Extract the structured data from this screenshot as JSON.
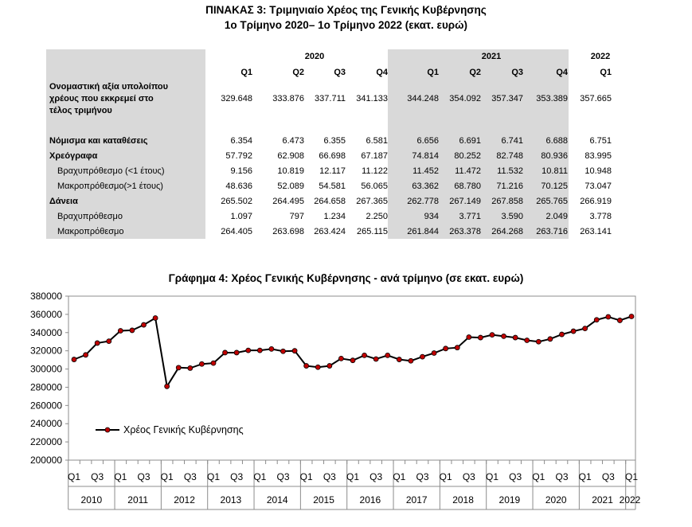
{
  "table": {
    "title": "ΠΙΝΑΚΑΣ 3: Τριμηνιαίο Χρέος της Γενικής Κυβέρνησης",
    "subtitle": "1ο Τρίμηνο 2020– 1ο Τρίμηνο 2022 (εκατ. ευρώ)",
    "years": [
      "2020",
      "2021",
      "2022"
    ],
    "quarters": [
      "Q1",
      "Q2",
      "Q3",
      "Q4",
      "Q1",
      "Q2",
      "Q3",
      "Q4",
      "Q1"
    ],
    "rows": [
      {
        "label_lines": [
          "Ονομαστική αξία υπολοίπου",
          "χρέους που εκκρεμεί στο",
          "τέλος τριμήνου"
        ],
        "bold": true,
        "values": [
          "329.648",
          "333.876",
          "337.711",
          "341.133",
          "344.248",
          "354.092",
          "357.347",
          "353.389",
          "357.665"
        ]
      },
      {
        "label": "Νόμισμα και καταθέσεις",
        "bold": true,
        "values": [
          "6.354",
          "6.473",
          "6.355",
          "6.581",
          "6.656",
          "6.691",
          "6.741",
          "6.688",
          "6.751"
        ]
      },
      {
        "label": "Χρεόγραφα",
        "bold": true,
        "values": [
          "57.792",
          "62.908",
          "66.698",
          "67.187",
          "74.814",
          "80.252",
          "82.748",
          "80.936",
          "83.995"
        ]
      },
      {
        "label": "Βραχυπρόθεσμο (<1 έτους)",
        "bold": false,
        "values": [
          "9.156",
          "10.819",
          "12.117",
          "11.122",
          "11.452",
          "11.472",
          "11.532",
          "10.811",
          "10.948"
        ]
      },
      {
        "label": "Μακροπρόθεσμο(>1 έτους)",
        "bold": false,
        "values": [
          "48.636",
          "52.089",
          "54.581",
          "56.065",
          "63.362",
          "68.780",
          "71.216",
          "70.125",
          "73.047"
        ]
      },
      {
        "label": "Δάνεια",
        "bold": true,
        "values": [
          "265.502",
          "264.495",
          "264.658",
          "267.365",
          "262.778",
          "267.149",
          "267.858",
          "265.765",
          "266.919"
        ]
      },
      {
        "label": "Βραχυπρόθεσμο",
        "bold": false,
        "values": [
          "1.097",
          "797",
          "1.234",
          "2.250",
          "934",
          "3.771",
          "3.590",
          "2.049",
          "3.778"
        ]
      },
      {
        "label": "Μακροπρόθεσμο",
        "bold": false,
        "values": [
          "264.405",
          "263.698",
          "263.424",
          "265.115",
          "261.844",
          "263.378",
          "264.268",
          "263.716",
          "263.141"
        ]
      }
    ]
  },
  "chart_data": {
    "type": "line",
    "title": "Γράφημα 4: Χρέος Γενικής Κυβέρνησης - ανά τρίμηνο (σε εκατ. ευρώ)",
    "series": [
      {
        "name": "Χρέος Γενικής Κυβέρνησης",
        "color": "#000000",
        "marker_color": "#c00000",
        "values": [
          310500,
          315500,
          328500,
          330500,
          342000,
          342500,
          348500,
          356000,
          281000,
          301500,
          301000,
          305500,
          306500,
          318000,
          318000,
          320500,
          320500,
          322000,
          319500,
          320000,
          303500,
          302000,
          303500,
          311500,
          309500,
          315000,
          311000,
          315000,
          310500,
          309000,
          313500,
          317500,
          322500,
          323500,
          335000,
          334500,
          337500,
          336000,
          334500,
          331500,
          330000,
          333000,
          338000,
          341500,
          344500,
          354000,
          357300,
          353400,
          357700
        ]
      }
    ],
    "quarter_labels": [
      "Q1",
      "Q3",
      "Q1",
      "Q3",
      "Q1",
      "Q3",
      "Q1",
      "Q3",
      "Q1",
      "Q3",
      "Q1",
      "Q3",
      "Q1",
      "Q3",
      "Q1",
      "Q3",
      "Q1",
      "Q3",
      "Q1",
      "Q3",
      "Q1",
      "Q3",
      "Q1",
      "Q3",
      "Q1"
    ],
    "years": [
      "2010",
      "2011",
      "2012",
      "2013",
      "2014",
      "2015",
      "2016",
      "2017",
      "2018",
      "2019",
      "2020",
      "2021",
      "2022"
    ],
    "ylim": [
      200000,
      380000
    ],
    "yticks": [
      "200000",
      "220000",
      "240000",
      "260000",
      "280000",
      "300000",
      "320000",
      "340000",
      "360000",
      "380000"
    ],
    "legend_position": "bottom-left",
    "grid": false
  }
}
